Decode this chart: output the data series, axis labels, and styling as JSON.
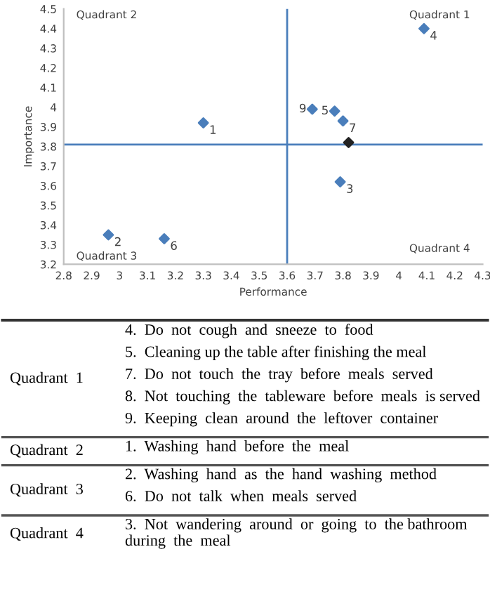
{
  "chart_data": [
    {
      "type": "scatter",
      "xlabel": "Performance",
      "ylabel": "Importance",
      "x": [
        3.3,
        2.96,
        3.79,
        4.09,
        3.77,
        3.16,
        3.8,
        3.82,
        3.69
      ],
      "values": [
        3.92,
        3.35,
        3.62,
        4.4,
        3.98,
        3.33,
        3.93,
        3.82,
        3.99
      ],
      "colors": [
        "#4a7ebb",
        "#4a7ebb",
        "#4a7ebb",
        "#4a7ebb",
        "#4a7ebb",
        "#4a7ebb",
        "#4a7ebb",
        "#222222",
        "#4a7ebb"
      ],
      "marker": "diamond",
      "xlim": [
        2.8,
        4.3
      ],
      "xticks": [
        2.8,
        2.9,
        3,
        3.1,
        3.2,
        3.3,
        3.4,
        3.5,
        3.6,
        3.7,
        3.8,
        3.9,
        4,
        4.1,
        4.2,
        4.3
      ],
      "ylim": [
        3.2,
        4.5
      ],
      "yticks": [
        3.2,
        3.3,
        3.4,
        3.5,
        3.6,
        3.7,
        3.8,
        3.9,
        4,
        4.1,
        4.2,
        4.3,
        4.4,
        4.5
      ],
      "ref_lines": [
        {
          "axis": "x",
          "value": 3.6,
          "color": "#4a7ebb"
        },
        {
          "axis": "y",
          "value": 3.81,
          "color": "#4a7ebb"
        }
      ],
      "annotations": [
        "Quadrant 2",
        "Quadrant 1",
        "Quadrant 3",
        "Quadrant 4",
        {
          "text": "1",
          "x": 3.3,
          "y": 3.92
        },
        {
          "text": "2",
          "x": 2.96,
          "y": 3.35
        },
        {
          "text": "3",
          "x": 3.79,
          "y": 3.62
        },
        {
          "text": "4",
          "x": 4.09,
          "y": 4.4
        },
        {
          "text": "5",
          "x": 3.77,
          "y": 3.98
        },
        {
          "text": "6",
          "x": 3.16,
          "y": 3.33
        },
        {
          "text": "7",
          "x": 3.8,
          "y": 3.93
        },
        {
          "text": "9",
          "x": 3.69,
          "y": 3.99
        }
      ],
      "grid": false,
      "legend": false
    },
    {
      "type": "other",
      "y_categories": [
        "Quadrant  1",
        "Quadrant  2",
        "Quadrant  3",
        "Quadrant  4"
      ],
      "cell_labels": [
        [
          "4.  Do  not  cough  and  sneeze  to  food",
          "5.  Cleaning up the table after finishing the meal",
          "7.  Do  not  touch  the  tray  before  meals  served",
          "8.  Not  touching  the  tableware  before  meals  is served",
          "9.  Keeping  clean  around  the  leftover  container"
        ],
        [
          "1.  Washing  hand  before  the  meal"
        ],
        [
          "2.  Washing  hand  as  the  hand  washing  method",
          "6.  Do  not  talk  when  meals  served"
        ],
        [
          "3.  Not  wandering  around  or  going  to  the bathroom  during  the  meal"
        ]
      ]
    }
  ]
}
